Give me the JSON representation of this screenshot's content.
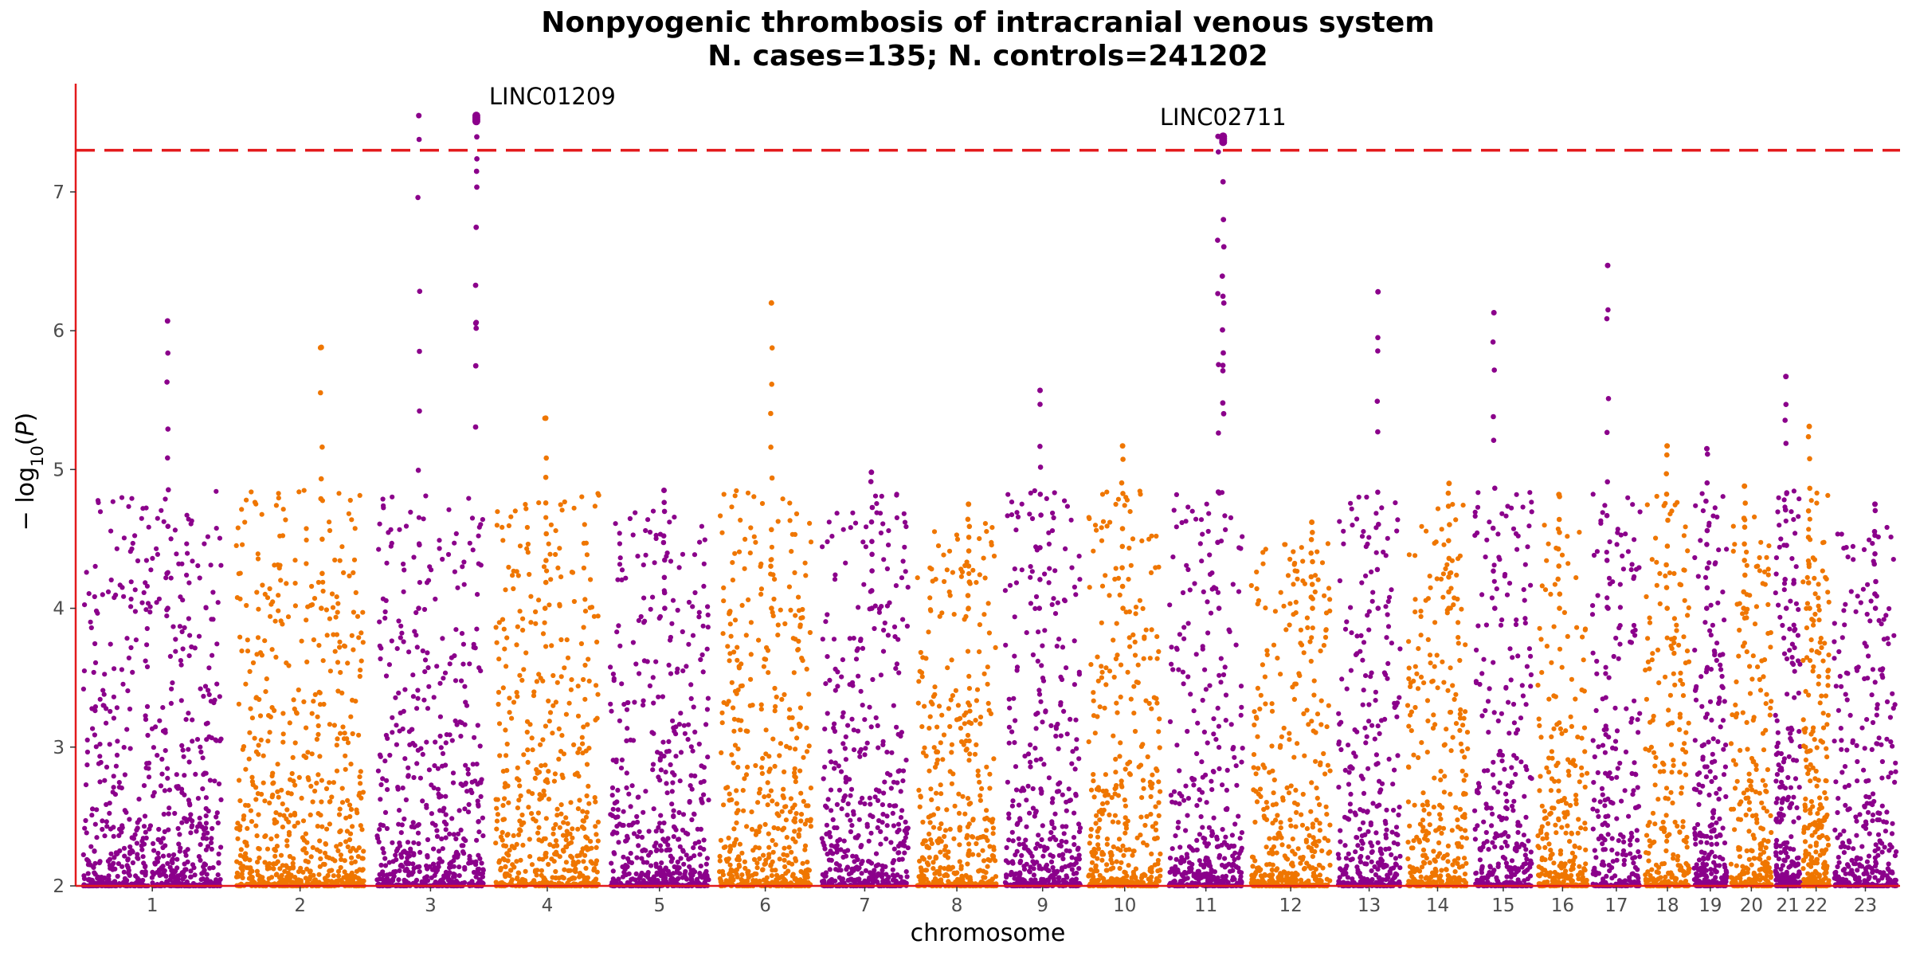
{
  "chart_data": {
    "type": "scatter",
    "subtype": "manhattan",
    "title": "Nonpyogenic thrombosis of intracranial venous system",
    "subtitle": "N. cases=135; N. controls=241202",
    "xlabel": "chromosome",
    "ylabel": "−log10(P)",
    "ylim": [
      2,
      7.78
    ],
    "yticks": [
      2,
      3,
      4,
      5,
      6,
      7
    ],
    "grid": false,
    "legend": "none",
    "threshold": {
      "value": 7.3,
      "style": "dashed",
      "color": "#e31a1c"
    },
    "colors": {
      "odd": "#8b008b",
      "even": "#ef7600",
      "axis": "#e31a1c"
    },
    "chromosomes": [
      {
        "chr": "1",
        "label": "1",
        "start": 0.0,
        "end": 0.084,
        "color": "#8b008b",
        "peak": 6.07
      },
      {
        "chr": "2",
        "label": "2",
        "start": 0.084,
        "end": 0.162,
        "color": "#ef7600",
        "peak": 5.88
      },
      {
        "chr": "3",
        "label": "3",
        "start": 0.162,
        "end": 0.227,
        "color": "#8b008b",
        "peak": 7.55
      },
      {
        "chr": "4",
        "label": "4",
        "start": 0.227,
        "end": 0.29,
        "color": "#ef7600",
        "peak": 5.37
      },
      {
        "chr": "5",
        "label": "5",
        "start": 0.29,
        "end": 0.35,
        "color": "#8b008b",
        "peak": 4.85
      },
      {
        "chr": "6",
        "label": "6",
        "start": 0.35,
        "end": 0.406,
        "color": "#ef7600",
        "peak": 6.2
      },
      {
        "chr": "7",
        "label": "7",
        "start": 0.406,
        "end": 0.459,
        "color": "#8b008b",
        "peak": 4.98
      },
      {
        "chr": "8",
        "label": "8",
        "start": 0.459,
        "end": 0.507,
        "color": "#ef7600",
        "peak": 4.75
      },
      {
        "chr": "9",
        "label": "9",
        "start": 0.507,
        "end": 0.553,
        "color": "#8b008b",
        "peak": 5.57
      },
      {
        "chr": "10",
        "label": "10",
        "start": 0.553,
        "end": 0.597,
        "color": "#ef7600",
        "peak": 5.17
      },
      {
        "chr": "11",
        "label": "11",
        "start": 0.597,
        "end": 0.642,
        "color": "#8b008b",
        "peak": 7.4
      },
      {
        "chr": "12",
        "label": "12",
        "start": 0.642,
        "end": 0.69,
        "color": "#ef7600",
        "peak": 4.62
      },
      {
        "chr": "13",
        "label": "13",
        "start": 0.69,
        "end": 0.728,
        "color": "#8b008b",
        "peak": 6.28
      },
      {
        "chr": "14",
        "label": "14",
        "start": 0.728,
        "end": 0.765,
        "color": "#ef7600",
        "peak": 4.9
      },
      {
        "chr": "15",
        "label": "15",
        "start": 0.765,
        "end": 0.8,
        "color": "#8b008b",
        "peak": 6.13
      },
      {
        "chr": "16",
        "label": "16",
        "start": 0.8,
        "end": 0.83,
        "color": "#ef7600",
        "peak": 4.82
      },
      {
        "chr": "17",
        "label": "17",
        "start": 0.83,
        "end": 0.859,
        "color": "#8b008b",
        "peak": 6.47
      },
      {
        "chr": "18",
        "label": "18",
        "start": 0.859,
        "end": 0.886,
        "color": "#ef7600",
        "peak": 5.17
      },
      {
        "chr": "19",
        "label": "19",
        "start": 0.886,
        "end": 0.906,
        "color": "#8b008b",
        "peak": 5.15
      },
      {
        "chr": "20",
        "label": "20",
        "start": 0.906,
        "end": 0.931,
        "color": "#ef7600",
        "peak": 4.88
      },
      {
        "chr": "21",
        "label": "21",
        "start": 0.931,
        "end": 0.946,
        "color": "#8b008b",
        "peak": 5.67
      },
      {
        "chr": "22",
        "label": "22",
        "start": 0.946,
        "end": 0.962,
        "color": "#ef7600",
        "peak": 5.31
      },
      {
        "chr": "23",
        "label": "23",
        "start": 0.962,
        "end": 1.0,
        "color": "#8b008b",
        "peak": 4.75
      }
    ],
    "highlights": [
      {
        "chr": "3",
        "pos": 0.886,
        "value": 7.55,
        "label": "LINC01209"
      },
      {
        "chr": "11",
        "pos": 0.71,
        "value": 7.4,
        "label": "LINC02711"
      }
    ]
  }
}
